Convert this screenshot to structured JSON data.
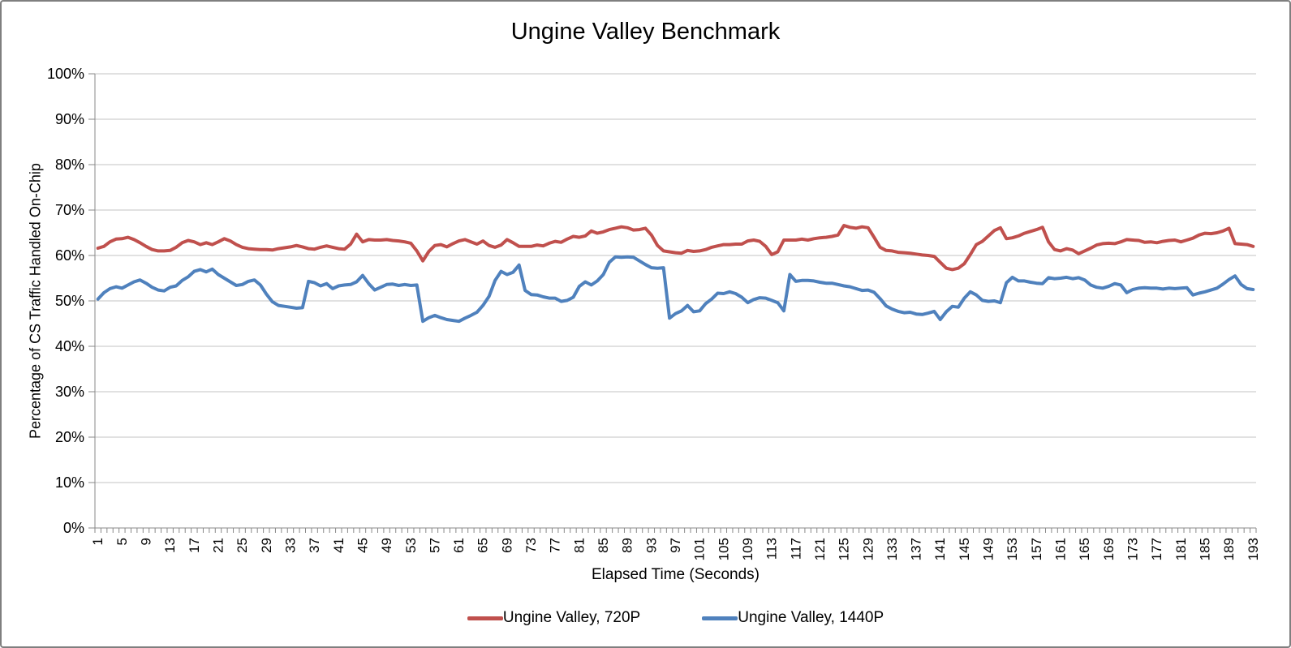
{
  "chart_data": {
    "type": "line",
    "title": "Ungine Valley Benchmark",
    "xlabel": "Elapsed Time (Seconds)",
    "ylabel": "Percentage of CS Traffic Handled On-Chip",
    "ylim": [
      0,
      100
    ],
    "y_tick_step": 10,
    "y_tick_labels": [
      "0%",
      "10%",
      "20%",
      "30%",
      "40%",
      "50%",
      "60%",
      "70%",
      "80%",
      "90%",
      "100%"
    ],
    "x_range": [
      1,
      193
    ],
    "x_tick_labels": [
      1,
      5,
      9,
      13,
      17,
      21,
      25,
      29,
      33,
      37,
      41,
      45,
      49,
      53,
      57,
      61,
      65,
      69,
      73,
      77,
      81,
      85,
      89,
      93,
      97,
      101,
      105,
      109,
      113,
      117,
      121,
      125,
      129,
      133,
      137,
      141,
      145,
      149,
      153,
      157,
      161,
      165,
      169,
      173,
      177,
      181,
      185,
      189,
      193
    ],
    "grid": true,
    "legend_position": "bottom",
    "colors": {
      "grid": "#c3c3c3",
      "axis": "#898989",
      "background": "#ffffff",
      "border": "#7f7f7f"
    },
    "series": [
      {
        "name": "Ungine Valley, 720P",
        "color": "#C0504D",
        "values": [
          61.6,
          62.0,
          63.0,
          63.6,
          63.7,
          64.0,
          63.5,
          62.8,
          62.0,
          61.3,
          61.0,
          61.0,
          61.1,
          61.8,
          62.8,
          63.3,
          63.0,
          62.4,
          62.8,
          62.4,
          63.0,
          63.7,
          63.2,
          62.4,
          61.8,
          61.5,
          61.4,
          61.3,
          61.3,
          61.2,
          61.5,
          61.7,
          61.9,
          62.2,
          61.9,
          61.5,
          61.4,
          61.8,
          62.1,
          61.8,
          61.5,
          61.4,
          62.5,
          64.7,
          63.0,
          63.5,
          63.4,
          63.4,
          63.5,
          63.3,
          63.2,
          63.0,
          62.7,
          61.0,
          58.8,
          60.9,
          62.2,
          62.4,
          61.9,
          62.6,
          63.2,
          63.5,
          63.0,
          62.5,
          63.2,
          62.2,
          61.8,
          62.3,
          63.5,
          62.8,
          62.0,
          62.0,
          62.0,
          62.3,
          62.1,
          62.7,
          63.1,
          62.9,
          63.6,
          64.2,
          64.0,
          64.3,
          65.4,
          64.9,
          65.2,
          65.7,
          66.0,
          66.3,
          66.1,
          65.6,
          65.7,
          66.0,
          64.5,
          62.2,
          61.0,
          60.8,
          60.6,
          60.5,
          61.1,
          60.9,
          61.0,
          61.3,
          61.8,
          62.1,
          62.4,
          62.4,
          62.5,
          62.5,
          63.2,
          63.4,
          63.1,
          62.0,
          60.2,
          60.8,
          63.4,
          63.4,
          63.4,
          63.6,
          63.4,
          63.7,
          63.9,
          64.0,
          64.2,
          64.5,
          66.6,
          66.2,
          66.0,
          66.3,
          66.1,
          64.0,
          61.8,
          61.1,
          61.0,
          60.7,
          60.6,
          60.5,
          60.3,
          60.1,
          60.0,
          59.8,
          58.5,
          57.2,
          56.9,
          57.2,
          58.2,
          60.2,
          62.4,
          63.1,
          64.3,
          65.5,
          66.1,
          63.7,
          63.9,
          64.3,
          64.9,
          65.3,
          65.7,
          66.2,
          63.0,
          61.3,
          61.0,
          61.5,
          61.2,
          60.4,
          61.0,
          61.6,
          62.3,
          62.6,
          62.7,
          62.6,
          63.0,
          63.5,
          63.4,
          63.3,
          62.9,
          63.0,
          62.8,
          63.1,
          63.3,
          63.4,
          63.0,
          63.4,
          63.8,
          64.5,
          64.9,
          64.8,
          65.0,
          65.4,
          66.0,
          62.6,
          62.5,
          62.4,
          62.0
        ]
      },
      {
        "name": "Ungine Valley, 1440P",
        "color": "#4F81BD",
        "values": [
          50.4,
          51.8,
          52.7,
          53.1,
          52.8,
          53.5,
          54.2,
          54.6,
          53.9,
          53.0,
          52.4,
          52.2,
          53.0,
          53.3,
          54.5,
          55.3,
          56.5,
          56.9,
          56.4,
          57.0,
          55.8,
          55.0,
          54.2,
          53.4,
          53.6,
          54.3,
          54.6,
          53.5,
          51.5,
          49.8,
          49.0,
          48.8,
          48.6,
          48.4,
          48.5,
          54.3,
          54.0,
          53.3,
          53.8,
          52.7,
          53.3,
          53.5,
          53.6,
          54.2,
          55.6,
          53.8,
          52.4,
          53.0,
          53.6,
          53.7,
          53.4,
          53.6,
          53.4,
          53.5,
          45.5,
          46.3,
          46.8,
          46.3,
          45.9,
          45.7,
          45.5,
          46.2,
          46.8,
          47.5,
          49.0,
          51.0,
          54.5,
          56.5,
          55.8,
          56.3,
          57.9,
          52.3,
          51.4,
          51.3,
          50.9,
          50.6,
          50.6,
          49.9,
          50.1,
          50.8,
          53.2,
          54.2,
          53.5,
          54.4,
          55.8,
          58.5,
          59.7,
          59.6,
          59.7,
          59.6,
          58.8,
          58.0,
          57.3,
          57.2,
          57.3,
          46.2,
          47.2,
          47.8,
          49.0,
          47.6,
          47.8,
          49.4,
          50.4,
          51.7,
          51.6,
          52.0,
          51.6,
          50.8,
          49.6,
          50.3,
          50.7,
          50.6,
          50.1,
          49.6,
          47.8,
          55.8,
          54.3,
          54.5,
          54.5,
          54.4,
          54.1,
          53.9,
          53.9,
          53.6,
          53.3,
          53.1,
          52.7,
          52.3,
          52.4,
          51.9,
          50.5,
          48.9,
          48.2,
          47.7,
          47.4,
          47.5,
          47.1,
          47.0,
          47.3,
          47.7,
          45.9,
          47.6,
          48.8,
          48.6,
          50.6,
          52.0,
          51.3,
          50.1,
          49.9,
          50.0,
          49.6,
          54.0,
          55.2,
          54.4,
          54.4,
          54.1,
          53.9,
          53.8,
          55.1,
          54.9,
          55.0,
          55.2,
          54.9,
          55.1,
          54.6,
          53.5,
          53.0,
          52.8,
          53.2,
          53.8,
          53.5,
          51.8,
          52.5,
          52.8,
          52.9,
          52.8,
          52.8,
          52.6,
          52.8,
          52.7,
          52.8,
          52.9,
          51.3,
          51.7,
          52.0,
          52.4,
          52.8,
          53.7,
          54.7,
          55.5,
          53.6,
          52.7,
          52.5
        ]
      }
    ]
  }
}
